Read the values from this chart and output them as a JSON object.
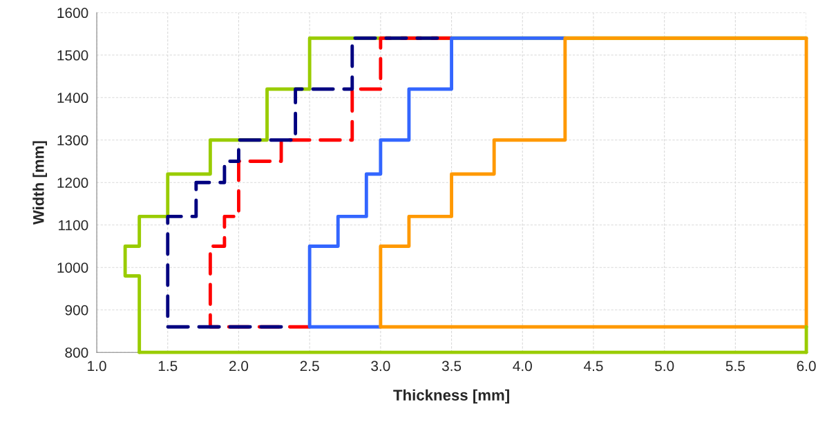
{
  "chart_data": {
    "type": "line",
    "xlabel": "Thickness [mm]",
    "ylabel": "Width [mm]",
    "xlim": [
      1.0,
      6.0
    ],
    "ylim": [
      800,
      1600
    ],
    "xticks": [
      {
        "value": 1.0,
        "label": "1.0"
      },
      {
        "value": 1.5,
        "label": "1.5"
      },
      {
        "value": 2.0,
        "label": "2.0"
      },
      {
        "value": 2.5,
        "label": "2.5"
      },
      {
        "value": 3.0,
        "label": "3.0"
      },
      {
        "value": 3.5,
        "label": "3.5"
      },
      {
        "value": 4.0,
        "label": "4.0"
      },
      {
        "value": 4.5,
        "label": "4.5"
      },
      {
        "value": 5.0,
        "label": "5.0"
      },
      {
        "value": 5.5,
        "label": "5.5"
      },
      {
        "value": 6.0,
        "label": "6.0"
      }
    ],
    "yticks": [
      800,
      900,
      1000,
      1100,
      1200,
      1300,
      1400,
      1500,
      1600
    ],
    "grid": true,
    "marker": "none",
    "series": [
      {
        "color": "#99cc00",
        "line_style": "solid",
        "x": [
          1.3,
          1.3,
          1.2,
          1.2,
          1.3,
          1.3,
          1.5,
          1.5,
          1.8,
          1.8,
          2.2,
          2.2,
          2.5,
          2.5,
          6.0
        ],
        "values": [
          800,
          980,
          980,
          1050,
          1050,
          1120,
          1120,
          1220,
          1220,
          1300,
          1300,
          1420,
          1420,
          1540,
          1540
        ]
      },
      {
        "color": "#ff0000",
        "line_style": "dashed",
        "x": [
          3.5,
          3.0,
          3.0,
          2.8,
          2.8,
          2.3,
          2.3,
          2.0,
          2.0,
          1.9,
          1.9,
          1.8,
          1.8,
          2.5
        ],
        "values": [
          1540,
          1540,
          1420,
          1420,
          1300,
          1300,
          1250,
          1250,
          1120,
          1120,
          1050,
          1050,
          860,
          860
        ]
      },
      {
        "color": "#000080",
        "line_style": "dashed",
        "x": [
          3.4,
          2.8,
          2.8,
          2.4,
          2.4,
          2.0,
          2.0,
          1.9,
          1.9,
          1.7,
          1.7,
          1.5,
          1.5,
          2.3
        ],
        "values": [
          1540,
          1540,
          1420,
          1420,
          1300,
          1300,
          1250,
          1250,
          1200,
          1200,
          1120,
          1120,
          860,
          860
        ]
      },
      {
        "color": "#3366ff",
        "line_style": "solid",
        "x": [
          3.0,
          2.5,
          2.5,
          2.7,
          2.7,
          2.9,
          2.9,
          3.0,
          3.0,
          3.2,
          3.2,
          3.5,
          3.5,
          4.3
        ],
        "values": [
          860,
          860,
          1050,
          1050,
          1120,
          1120,
          1220,
          1220,
          1300,
          1300,
          1420,
          1420,
          1540,
          1540
        ]
      },
      {
        "color": "#ff9900",
        "line_style": "solid",
        "x": [
          3.0,
          3.0,
          3.2,
          3.2,
          3.5,
          3.5,
          3.8,
          3.8,
          4.3,
          4.3,
          6.0,
          6.0
        ],
        "values": [
          860,
          1050,
          1050,
          1120,
          1120,
          1220,
          1220,
          1300,
          1300,
          1540,
          1540,
          860
        ]
      },
      {
        "color": "#ff9900",
        "line_style": "solid",
        "x": [
          3.0,
          6.0
        ],
        "values": [
          860,
          860
        ]
      },
      {
        "color": "#99cc00",
        "line_style": "solid",
        "x": [
          1.3,
          6.0
        ],
        "values": [
          800,
          800
        ]
      },
      {
        "color": "#99cc00",
        "line_style": "solid",
        "x": [
          6.0,
          6.0
        ],
        "values": [
          800,
          860
        ]
      }
    ]
  }
}
